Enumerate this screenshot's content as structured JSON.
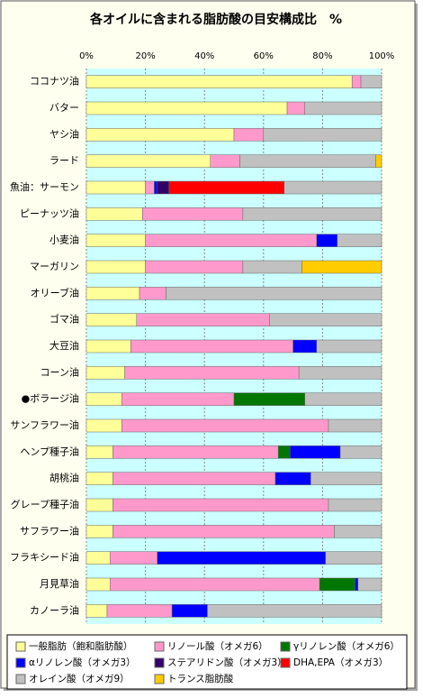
{
  "chart_data": {
    "type": "stacked-bar-horizontal",
    "title": "各オイルに含まれる脂肪酸の目安構成比　%",
    "categories": [
      "ココナツ油",
      "バター",
      "ヤシ油",
      "ラード",
      "魚油：サーモン",
      "ピーナッツ油",
      "小麦油",
      "マーガリン",
      "オリーブ油",
      "ゴマ油",
      "大豆油",
      "コーン油",
      "●ボラージ油",
      "サンフラワー油",
      "ヘンプ種子油",
      "胡桃油",
      "グレープ種子油",
      "サフラワー油",
      "フラキシード油",
      "月見草油",
      "カノーラ油"
    ],
    "series": [
      {
        "name": "一般脂肪（飽和脂肪酸）",
        "color": "#ffff99",
        "values": [
          90,
          68,
          50,
          42,
          20,
          19,
          20,
          20,
          18,
          17,
          15,
          13,
          12,
          12,
          9,
          9,
          9,
          9,
          8,
          8,
          7
        ]
      },
      {
        "name": "リノール酸（オメガ6）",
        "color": "#ff99cc",
        "values": [
          3,
          6,
          10,
          10,
          3,
          34,
          58,
          33,
          9,
          45,
          55,
          59,
          38,
          70,
          56,
          55,
          73,
          75,
          16,
          71,
          22
        ]
      },
      {
        "name": "γリノレン酸（オメガ6）",
        "color": "#007700",
        "values": [
          0,
          0,
          0,
          0,
          0,
          0,
          0,
          0,
          0,
          0,
          0,
          0,
          24,
          0,
          4,
          0,
          0,
          0,
          0,
          12,
          0
        ]
      },
      {
        "name": "αリノレン酸（オメガ3）",
        "color": "#0000ff",
        "values": [
          0,
          0,
          0,
          0,
          1,
          0,
          7,
          0,
          0,
          0,
          8,
          0,
          0,
          0,
          17,
          12,
          0,
          0,
          57,
          1,
          12
        ]
      },
      {
        "name": "ステアリドン酸（オメガ3）",
        "color": "#330066",
        "values": [
          0,
          0,
          0,
          0,
          4,
          0,
          0,
          0,
          0,
          0,
          0,
          0,
          0,
          0,
          0,
          0,
          0,
          0,
          0,
          0,
          0
        ]
      },
      {
        "name": "DHA,EPA（オメガ3）",
        "color": "#ff0000",
        "values": [
          0,
          0,
          0,
          0,
          39,
          0,
          0,
          0,
          0,
          0,
          0,
          0,
          0,
          0,
          0,
          0,
          0,
          0,
          0,
          0,
          0
        ]
      },
      {
        "name": "オレイン酸（オメガ9）",
        "color": "#c0c0c0",
        "values": [
          7,
          26,
          40,
          46,
          33,
          47,
          15,
          20,
          73,
          38,
          22,
          28,
          26,
          18,
          14,
          24,
          18,
          16,
          19,
          8,
          59
        ]
      },
      {
        "name": "トランス脂肪酸",
        "color": "#ffcc00",
        "values": [
          0,
          0,
          0,
          2,
          0,
          0,
          0,
          27,
          0,
          0,
          0,
          0,
          0,
          0,
          0,
          0,
          0,
          0,
          0,
          0,
          0
        ]
      }
    ],
    "xlim": [
      0,
      100
    ],
    "xticks": [
      {
        "value": 0,
        "label": "0%"
      },
      {
        "value": 20,
        "label": "20%"
      },
      {
        "value": 40,
        "label": "40%"
      },
      {
        "value": 60,
        "label": "60%"
      },
      {
        "value": 80,
        "label": "80%"
      },
      {
        "value": 100,
        "label": "100%"
      }
    ],
    "grid": true
  }
}
